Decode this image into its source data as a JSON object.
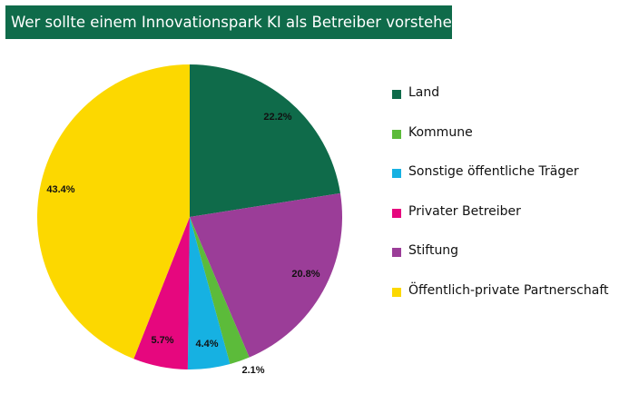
{
  "title": "Wer sollte einem Innovationspark KI als Betreiber vorstehen?",
  "chart_data": {
    "type": "pie",
    "title": "Wer sollte einem Innovationspark KI als Betreiber vorstehen?",
    "legend_position": "right",
    "slices": [
      {
        "label": "Land",
        "value": 22.2,
        "display": "22.2%",
        "color": "#0f6b4a"
      },
      {
        "label": "Stiftung",
        "value": 20.8,
        "display": "20.8%",
        "color": "#9b3d98"
      },
      {
        "label": "Kommune",
        "value": 2.1,
        "display": "2.1%",
        "color": "#5cbb3a"
      },
      {
        "label": "Sonstige öffentliche Träger",
        "value": 4.4,
        "display": "4.4%",
        "color": "#16b1e2"
      },
      {
        "label": "Privater Betreiber",
        "value": 5.7,
        "display": "5.7%",
        "color": "#e6077e"
      },
      {
        "label": "Öffentlich-private Partnerschaft",
        "value": 43.4,
        "display": "43.4%",
        "color": "#fcd800"
      }
    ],
    "legend": [
      {
        "label": "Land",
        "color": "#0f6b4a"
      },
      {
        "label": "Kommune",
        "color": "#5cbb3a"
      },
      {
        "label": "Sonstige öffentliche Träger",
        "color": "#16b1e2"
      },
      {
        "label": "Privater Betreiber",
        "color": "#e6077e"
      },
      {
        "label": "Stiftung",
        "color": "#9b3d98"
      },
      {
        "label": "Öffentlich-private Partnerschaft",
        "color": "#fcd800"
      }
    ]
  }
}
